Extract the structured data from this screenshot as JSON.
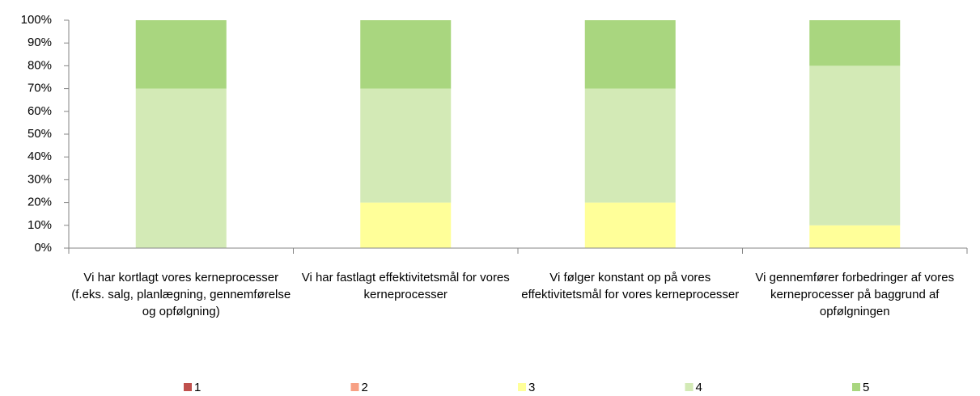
{
  "chart_data": {
    "type": "stacked_bar",
    "categories": [
      "Vi har kortlagt vores kerneprocesser (f.eks. salg, planlægning, gennemførelse og opfølgning)",
      "Vi har fastlagt effektivitetsmål for vores kerneprocesser",
      "Vi følger konstant op på vores effektivitetsmål for vores kerneprocesser",
      "Vi gennemfører forbedringer af vores kerneprocesser på baggrund af opfølgningen"
    ],
    "series": [
      {
        "name": "1",
        "color": "#c0504d",
        "values": [
          0,
          0,
          0,
          0
        ]
      },
      {
        "name": "2",
        "color": "#f7a084",
        "values": [
          0,
          0,
          0,
          0
        ]
      },
      {
        "name": "3",
        "color": "#ffff99",
        "values": [
          0,
          20,
          20,
          10
        ]
      },
      {
        "name": "4",
        "color": "#d3eab6",
        "values": [
          70,
          50,
          50,
          70
        ]
      },
      {
        "name": "5",
        "color": "#a9d67f",
        "values": [
          30,
          30,
          30,
          20
        ]
      }
    ],
    "ylim": [
      0,
      100
    ],
    "yticks": [
      {
        "value": 0,
        "label": "0%"
      },
      {
        "value": 10,
        "label": "10%"
      },
      {
        "value": 20,
        "label": "20%"
      },
      {
        "value": 30,
        "label": "30%"
      },
      {
        "value": 40,
        "label": "40%"
      },
      {
        "value": 50,
        "label": "50%"
      },
      {
        "value": 60,
        "label": "60%"
      },
      {
        "value": 70,
        "label": "70%"
      },
      {
        "value": 80,
        "label": "80%"
      },
      {
        "value": 90,
        "label": "90%"
      },
      {
        "value": 100,
        "label": "100%"
      }
    ],
    "legend": "bottom"
  }
}
